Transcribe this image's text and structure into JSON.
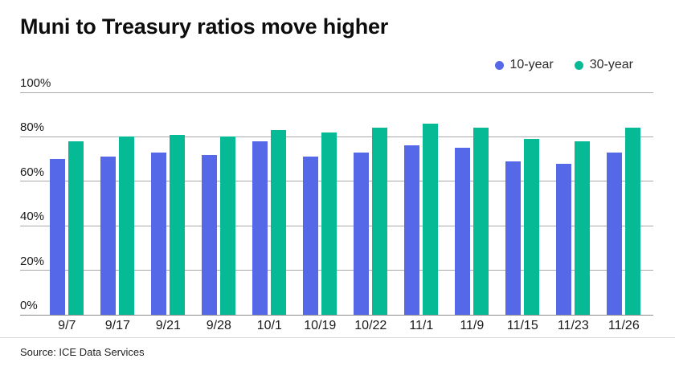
{
  "header": {
    "title": "Muni to Treasury ratios move higher"
  },
  "legend": {
    "items": [
      {
        "label": "10-year",
        "color": "#5569e8"
      },
      {
        "label": "30-year",
        "color": "#06ba96"
      }
    ]
  },
  "footer": {
    "source": "Source: ICE Data Services"
  },
  "chart_data": {
    "type": "bar",
    "title": "Muni to Treasury ratios move higher",
    "categories": [
      "9/7",
      "9/17",
      "9/21",
      "9/28",
      "10/1",
      "10/19",
      "10/22",
      "11/1",
      "11/9",
      "11/15",
      "11/23",
      "11/26"
    ],
    "series": [
      {
        "name": "10-year",
        "color": "#5569e8",
        "values": [
          70,
          71,
          73,
          72,
          78,
          71,
          73,
          76,
          75,
          69,
          68,
          73
        ]
      },
      {
        "name": "30-year",
        "color": "#06ba96",
        "values": [
          78,
          80,
          81,
          80,
          83,
          82,
          84,
          86,
          84,
          79,
          78,
          84
        ]
      }
    ],
    "xlabel": "",
    "ylabel": "",
    "ylim": [
      0,
      100
    ],
    "yticks": [
      {
        "value": 0,
        "label": "0%"
      },
      {
        "value": 20,
        "label": "20%"
      },
      {
        "value": 40,
        "label": "40%"
      },
      {
        "value": 60,
        "label": "60%"
      },
      {
        "value": 80,
        "label": "80%"
      },
      {
        "value": 100,
        "label": "100%"
      }
    ],
    "grid": true,
    "legend_position": "top-right",
    "source": "Source: ICE Data Services"
  }
}
